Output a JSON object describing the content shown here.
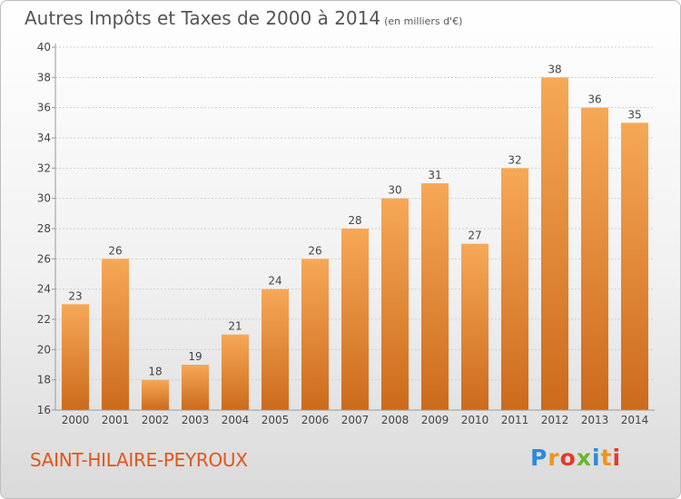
{
  "title": "Autres Impôts et Taxes de 2000 à 2014",
  "unit": "(en milliers d'€)",
  "place": "SAINT-HILAIRE-PEYROUX",
  "logo": {
    "letters": [
      "P",
      "r",
      "o",
      "x",
      "i",
      "t",
      "i"
    ],
    "colors": [
      "#2e8ad8",
      "#f0941e",
      "#e23b2a",
      "#6cb52d",
      "#2e8ad8",
      "#f0941e",
      "#e23b2a"
    ]
  },
  "colors": {
    "bar_top": "#f6a857",
    "bar_bottom": "#cc6a1c",
    "axis": "#999999",
    "grid": "#cfcfcf"
  },
  "chart_data": {
    "type": "bar",
    "categories": [
      "2000",
      "2001",
      "2002",
      "2003",
      "2004",
      "2005",
      "2006",
      "2007",
      "2008",
      "2009",
      "2010",
      "2011",
      "2012",
      "2013",
      "2014"
    ],
    "values": [
      23,
      26,
      18,
      19,
      21,
      24,
      26,
      28,
      30,
      31,
      27,
      32,
      38,
      36,
      35
    ],
    "ylim": [
      16,
      40
    ],
    "yticks": [
      16,
      18,
      20,
      22,
      24,
      26,
      28,
      30,
      32,
      34,
      36,
      38,
      40
    ],
    "grid": true
  }
}
